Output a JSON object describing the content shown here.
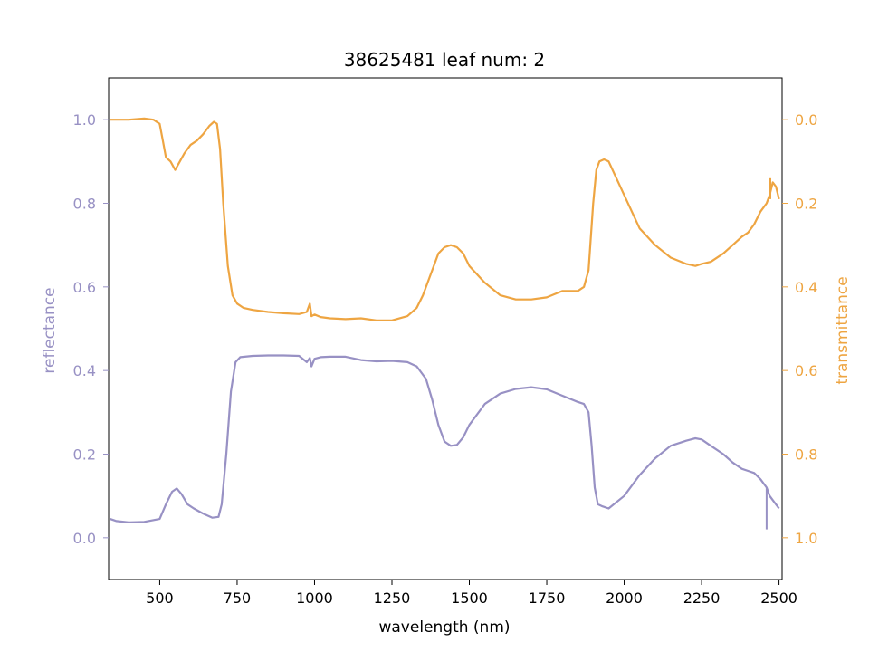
{
  "chart_data": {
    "type": "line",
    "title": "38625481 leaf num: 2",
    "xlabel": "wavelength (nm)",
    "ylabel_left": "reflectance",
    "ylabel_right": "transmittance",
    "xlim": [
      335,
      2510
    ],
    "ylim_left": [
      -0.1,
      1.1
    ],
    "ylim_right": [
      1.1,
      -0.1
    ],
    "right_axis_inverted": true,
    "grid": false,
    "x_ticks": [
      500,
      750,
      1000,
      1250,
      1500,
      1750,
      2000,
      2250,
      2500
    ],
    "x_tick_labels": [
      "500",
      "750",
      "1000",
      "1250",
      "1500",
      "1750",
      "2000",
      "2250",
      "2500"
    ],
    "left_ticks": [
      0.0,
      0.2,
      0.4,
      0.6,
      0.8,
      1.0
    ],
    "left_tick_labels": [
      "0.0",
      "0.2",
      "0.4",
      "0.6",
      "0.8",
      "1.0"
    ],
    "right_ticks": [
      0.0,
      0.2,
      0.4,
      0.6,
      0.8,
      1.0
    ],
    "right_tick_labels": [
      "0.0",
      "0.2",
      "0.4",
      "0.6",
      "0.8",
      "1.0"
    ],
    "colors": {
      "reflectance": "#9891c4",
      "transmittance": "#eea542"
    },
    "series": [
      {
        "axis": "left",
        "x": [
          340,
          360,
          400,
          450,
          500,
          520,
          540,
          555,
          570,
          590,
          610,
          640,
          670,
          690,
          700,
          715,
          730,
          745,
          760,
          800,
          850,
          900,
          950,
          975,
          985,
          990,
          1000,
          1020,
          1050,
          1100,
          1150,
          1200,
          1250,
          1300,
          1330,
          1360,
          1380,
          1400,
          1420,
          1440,
          1460,
          1480,
          1500,
          1550,
          1600,
          1650,
          1700,
          1750,
          1800,
          1850,
          1870,
          1885,
          1895,
          1905,
          1915,
          1930,
          1950,
          2000,
          2050,
          2100,
          2150,
          2200,
          2230,
          2250,
          2280,
          2320,
          2350,
          2380,
          2400,
          2420,
          2440,
          2460,
          2470,
          2480,
          2490,
          2500
        ],
        "values": [
          0.045,
          0.04,
          0.037,
          0.038,
          0.045,
          0.08,
          0.11,
          0.118,
          0.105,
          0.08,
          0.07,
          0.058,
          0.048,
          0.05,
          0.08,
          0.2,
          0.35,
          0.42,
          0.432,
          0.435,
          0.436,
          0.436,
          0.435,
          0.42,
          0.43,
          0.41,
          0.428,
          0.432,
          0.433,
          0.433,
          0.425,
          0.422,
          0.423,
          0.42,
          0.41,
          0.38,
          0.33,
          0.27,
          0.23,
          0.22,
          0.222,
          0.24,
          0.27,
          0.32,
          0.345,
          0.356,
          0.36,
          0.355,
          0.34,
          0.325,
          0.32,
          0.3,
          0.22,
          0.12,
          0.08,
          0.075,
          0.07,
          0.1,
          0.15,
          0.19,
          0.22,
          0.232,
          0.238,
          0.235,
          0.22,
          0.2,
          0.18,
          0.165,
          0.16,
          0.155,
          0.14,
          0.12,
          0.1,
          0.09,
          0.08,
          0.07
        ]
      },
      {
        "axis": "right",
        "x": [
          340,
          360,
          400,
          450,
          480,
          500,
          510,
          520,
          535,
          550,
          565,
          580,
          600,
          620,
          640,
          660,
          675,
          685,
          695,
          705,
          720,
          735,
          750,
          770,
          800,
          850,
          900,
          950,
          975,
          985,
          990,
          1000,
          1020,
          1050,
          1100,
          1150,
          1200,
          1250,
          1300,
          1330,
          1350,
          1380,
          1400,
          1420,
          1440,
          1460,
          1480,
          1500,
          1550,
          1600,
          1650,
          1700,
          1750,
          1800,
          1850,
          1870,
          1885,
          1900,
          1910,
          1920,
          1935,
          1950,
          2000,
          2050,
          2100,
          2150,
          2200,
          2230,
          2250,
          2280,
          2320,
          2350,
          2380,
          2400,
          2420,
          2440,
          2460,
          2470,
          2480,
          2490,
          2500
        ],
        "values": [
          0.0,
          0.0,
          0.0,
          -0.003,
          0.0,
          0.01,
          0.05,
          0.09,
          0.1,
          0.12,
          0.1,
          0.08,
          0.06,
          0.05,
          0.035,
          0.015,
          0.005,
          0.01,
          0.07,
          0.2,
          0.35,
          0.42,
          0.44,
          0.45,
          0.455,
          0.46,
          0.463,
          0.465,
          0.46,
          0.44,
          0.47,
          0.466,
          0.472,
          0.475,
          0.477,
          0.475,
          0.48,
          0.48,
          0.47,
          0.45,
          0.42,
          0.36,
          0.32,
          0.305,
          0.3,
          0.305,
          0.32,
          0.35,
          0.39,
          0.42,
          0.43,
          0.43,
          0.425,
          0.41,
          0.41,
          0.4,
          0.36,
          0.2,
          0.12,
          0.1,
          0.095,
          0.1,
          0.18,
          0.26,
          0.3,
          0.33,
          0.345,
          0.35,
          0.345,
          0.34,
          0.32,
          0.3,
          0.28,
          0.27,
          0.25,
          0.22,
          0.2,
          0.18,
          0.15,
          0.16,
          0.19
        ]
      }
    ],
    "spike_markers": {
      "left_bottom_value": 0.02,
      "right_top_value": 0.14
    }
  }
}
